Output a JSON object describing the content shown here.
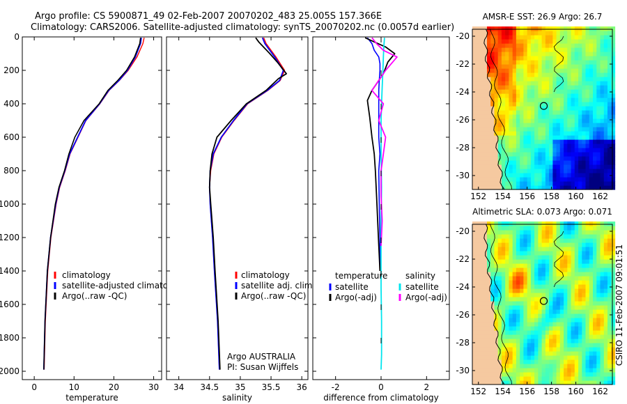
{
  "header": {
    "line1": "Argo profile: CS 5900871_49 02-Feb-2007 20070202_483 25.005S 157.366E",
    "line2": "Climatology: CARS2006. Satellite-adjusted climatology: synTS_20070202.nc (0.0057d earlier)"
  },
  "footer": {
    "credit": "CSIRO 11-Feb-2007 09:01:51"
  },
  "colors": {
    "climatology": "#ff0000",
    "satellite": "#0000ff",
    "argo": "#000000",
    "diff_temp_sat": "#0000ff",
    "diff_sal_sat": "#00e5ee",
    "diff_sal_argo": "#ff00ff",
    "land": "#f5c9a0"
  },
  "chart_data": [
    {
      "id": "temperature",
      "type": "line",
      "xlabel": "temperature",
      "ylabel": "",
      "xlim": [
        -3,
        32
      ],
      "ylim": [
        2050,
        0
      ],
      "xticks": [
        0,
        10,
        20,
        30
      ],
      "yticks": [
        0,
        200,
        400,
        600,
        800,
        1000,
        1200,
        1400,
        1600,
        1800,
        2000
      ],
      "legend": [
        "climatology",
        "satellite-adjusted climatology",
        "Argo(..raw -QC)"
      ],
      "annotation": "",
      "pi_label": "",
      "series": [
        {
          "name": "climatology",
          "color_key": "climatology",
          "x": [
            27.6,
            27.3,
            25.8,
            23.6,
            21.4,
            18.8,
            16.5,
            13.0,
            11.0,
            9.0,
            7.8,
            6.4,
            5.5,
            4.2,
            3.4,
            2.8,
            2.5
          ],
          "y": [
            5,
            40,
            120,
            200,
            260,
            320,
            400,
            500,
            600,
            700,
            800,
            900,
            1000,
            1200,
            1400,
            1700,
            1990
          ]
        },
        {
          "name": "satellite-adjusted climatology",
          "color_key": "satellite",
          "x": [
            26.9,
            26.7,
            25.4,
            23.4,
            21.3,
            18.7,
            16.4,
            12.9,
            10.9,
            8.9,
            7.7,
            6.3,
            5.4,
            4.1,
            3.3,
            2.7,
            2.4
          ],
          "y": [
            5,
            40,
            120,
            200,
            260,
            320,
            400,
            500,
            600,
            700,
            800,
            900,
            1000,
            1200,
            1400,
            1700,
            1990
          ]
        },
        {
          "name": "Argo(..raw -QC)",
          "color_key": "argo",
          "x": [
            26.7,
            26.5,
            25.2,
            23.2,
            21.0,
            18.5,
            16.3,
            12.5,
            10.2,
            8.7,
            7.6,
            6.2,
            5.3,
            4.1,
            3.3,
            2.7,
            2.4
          ],
          "y": [
            5,
            40,
            120,
            200,
            260,
            320,
            400,
            500,
            600,
            700,
            800,
            900,
            1000,
            1200,
            1400,
            1700,
            1990
          ]
        }
      ]
    },
    {
      "id": "salinity",
      "type": "line",
      "xlabel": "salinity",
      "ylabel": "",
      "xlim": [
        33.8,
        36.1
      ],
      "ylim": [
        2050,
        0
      ],
      "xticks": [
        34,
        34.5,
        35,
        35.5,
        36
      ],
      "yticks": [
        0,
        200,
        400,
        600,
        800,
        1000,
        1200,
        1400,
        1600,
        1800,
        2000
      ],
      "legend": [
        "climatology",
        "satellite adj. clim.",
        "Argo(..raw -QC)"
      ],
      "annotation": "Argo AUSTRALIA",
      "pi_label": "PI: Susan Wijffels",
      "series": [
        {
          "name": "climatology",
          "color_key": "climatology",
          "x": [
            35.38,
            35.42,
            35.58,
            35.72,
            35.65,
            35.45,
            35.12,
            34.9,
            34.7,
            34.57,
            34.52,
            34.5,
            34.51,
            34.55,
            34.58,
            34.63,
            34.66
          ],
          "y": [
            5,
            40,
            120,
            200,
            260,
            320,
            400,
            500,
            600,
            700,
            800,
            900,
            1000,
            1200,
            1400,
            1700,
            1990
          ]
        },
        {
          "name": "satellite adj. clim.",
          "color_key": "satellite",
          "x": [
            35.36,
            35.4,
            35.56,
            35.7,
            35.64,
            35.44,
            35.11,
            34.89,
            34.69,
            34.56,
            34.51,
            34.5,
            34.51,
            34.55,
            34.58,
            34.63,
            34.66
          ],
          "y": [
            5,
            40,
            120,
            200,
            260,
            320,
            400,
            500,
            600,
            700,
            800,
            900,
            1000,
            1200,
            1400,
            1700,
            1990
          ]
        },
        {
          "name": "Argo(..raw -QC)",
          "color_key": "argo",
          "x": [
            35.25,
            35.3,
            35.48,
            35.6,
            35.75,
            35.62,
            35.42,
            35.1,
            34.85,
            34.62,
            34.54,
            34.51,
            34.5,
            34.52,
            34.56,
            34.59,
            34.64,
            34.67
          ],
          "y": [
            5,
            30,
            100,
            150,
            220,
            250,
            320,
            400,
            500,
            600,
            700,
            800,
            900,
            1000,
            1200,
            1400,
            1700,
            1990
          ]
        }
      ]
    },
    {
      "id": "difference",
      "type": "line",
      "xlabel": "difference from climatology",
      "ylabel": "",
      "xlim": [
        -3,
        3
      ],
      "ylim": [
        2050,
        0
      ],
      "xticks": [
        -2,
        0,
        2
      ],
      "yticks": [
        0,
        200,
        400,
        600,
        800,
        1000,
        1200,
        1400,
        1600,
        1800,
        2000
      ],
      "legend_groups": [
        {
          "heading": "temperature",
          "items": [
            "satellite",
            "Argo(-adj)"
          ],
          "colors": [
            "satellite",
            "argo"
          ]
        },
        {
          "heading": "salinity",
          "items": [
            "satellite",
            "Argo(-adj)"
          ],
          "colors": [
            "diff_sal_sat",
            "diff_sal_argo"
          ]
        }
      ],
      "series": [
        {
          "name": "temperature satellite",
          "color_key": "diff_temp_sat",
          "x": [
            -0.6,
            -0.4,
            -0.3,
            -0.1,
            -0.05,
            -0.05,
            -0.08,
            -0.1,
            -0.1,
            -0.1,
            -0.1,
            -0.05,
            -0.1,
            -0.08,
            -0.05,
            -0.05
          ],
          "y": [
            5,
            40,
            80,
            120,
            160,
            200,
            260,
            320,
            400,
            500,
            600,
            700,
            800,
            1000,
            1200,
            1400
          ]
        },
        {
          "name": "temperature Argo(-adj)",
          "color_key": "argo",
          "x": [
            -0.7,
            -0.3,
            0.2,
            0.6,
            0.3,
            0.1,
            -0.2,
            -0.4,
            -0.6,
            -0.5,
            -0.4,
            -0.3,
            -0.25,
            -0.2,
            -0.15,
            -0.1,
            -0.05
          ],
          "y": [
            5,
            30,
            60,
            100,
            150,
            220,
            280,
            320,
            380,
            480,
            600,
            700,
            800,
            950,
            1100,
            1250,
            1400
          ]
        },
        {
          "name": "salinity satellite",
          "color_key": "diff_sal_sat",
          "x": [
            0.15,
            0.12,
            0.1,
            0.08,
            0.05,
            0.02,
            0.0,
            0.0,
            0.02,
            0.0,
            0.0,
            0.0,
            0.02,
            0.02,
            0.0
          ],
          "y": [
            5,
            60,
            120,
            200,
            300,
            400,
            500,
            700,
            900,
            1100,
            1300,
            1500,
            1700,
            1900,
            1990
          ]
        },
        {
          "name": "salinity Argo(-adj)",
          "color_key": "diff_sal_argo",
          "x": [
            -0.4,
            -0.2,
            0.1,
            0.7,
            0.2,
            -0.1,
            -0.4,
            0.1,
            -0.1,
            0.2,
            0.1,
            0.0,
            0.0,
            0.05,
            0.0
          ],
          "y": [
            5,
            40,
            80,
            120,
            200,
            260,
            320,
            400,
            500,
            600,
            700,
            800,
            950,
            1100,
            1250
          ]
        }
      ]
    },
    {
      "id": "sst_map",
      "type": "heatmap",
      "title": "AMSR-E SST: 26.9 Argo: 26.7",
      "xlim": [
        151.5,
        163
      ],
      "ylim": [
        -31,
        -19.5
      ],
      "xticks": [
        152,
        154,
        156,
        158,
        160,
        162
      ],
      "yticks": [
        -20,
        -22,
        -24,
        -26,
        -28,
        -30
      ],
      "argo_position": {
        "lon": 157.366,
        "lat": -25.005
      },
      "field": "sst"
    },
    {
      "id": "sla_map",
      "type": "heatmap",
      "title": "Altimetric SLA: 0.073 Argo: 0.071",
      "xlim": [
        151.5,
        163
      ],
      "ylim": [
        -31,
        -19.5
      ],
      "xticks": [
        152,
        154,
        156,
        158,
        160,
        162
      ],
      "yticks": [
        -20,
        -22,
        -24,
        -26,
        -28,
        -30
      ],
      "argo_position": {
        "lon": 157.366,
        "lat": -25.005
      },
      "field": "sla"
    }
  ]
}
